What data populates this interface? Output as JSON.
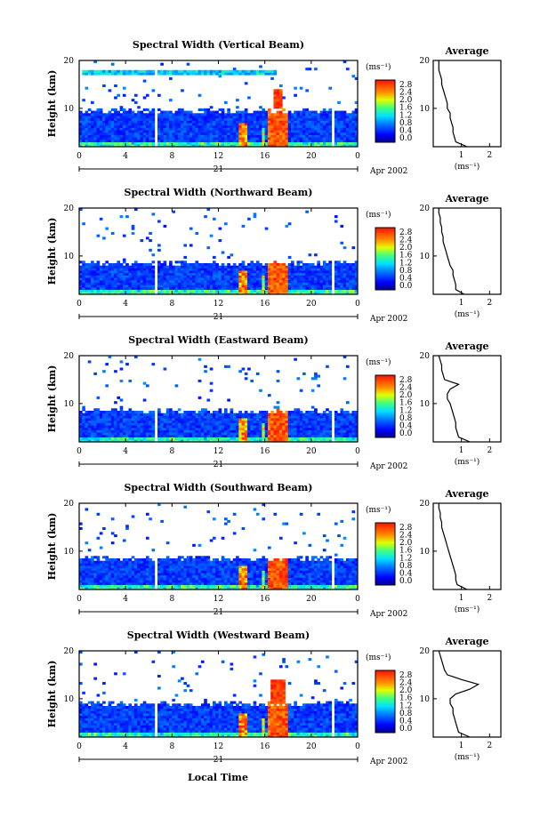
{
  "figure": {
    "date_day": "21",
    "date_label": "Apr 2002",
    "xlabel": "Local Time",
    "ylabel": "Height (km)",
    "colorbar_unit": "(ms⁻¹)",
    "colorbar_ticks": [
      "2.8",
      "2.4",
      "2.0",
      "1.6",
      "1.2",
      "0.8",
      "0.4",
      "0.0"
    ],
    "avg_title": "Average",
    "avg_xlabel": "(ms⁻¹)"
  },
  "chart_data": [
    {
      "type": "heatmap",
      "title": "Spectral Width (Vertical Beam)",
      "x": "Local Time",
      "x_ticks": [
        "0",
        "4",
        "8",
        "12",
        "16",
        "20",
        "0"
      ],
      "xlim": [
        0,
        24
      ],
      "ylabel": "Height (km)",
      "y_ticks": [
        "20",
        "10"
      ],
      "ylim": [
        2,
        20
      ],
      "color_range": [
        0,
        2.8
      ],
      "avg": {
        "title": "Average",
        "x_ticks": [
          "1",
          "2"
        ],
        "xlim": [
          0,
          2.4
        ],
        "xlabel": "(ms⁻¹)",
        "heights": [
          2,
          3,
          4,
          5,
          6,
          7,
          8,
          9,
          10,
          11,
          12,
          13,
          14,
          15,
          16,
          17,
          18,
          19,
          20
        ],
        "values": [
          1.2,
          0.8,
          0.75,
          0.7,
          0.7,
          0.65,
          0.6,
          0.6,
          0.5,
          0.5,
          0.45,
          0.4,
          0.35,
          0.3,
          0.3,
          0.25,
          0.2,
          0.2,
          0.2
        ]
      }
    },
    {
      "type": "heatmap",
      "title": "Spectral Width (Northward Beam)",
      "x": "Local Time",
      "x_ticks": [
        "0",
        "4",
        "8",
        "12",
        "16",
        "20",
        "0"
      ],
      "xlim": [
        0,
        24
      ],
      "ylabel": "Height (km)",
      "y_ticks": [
        "20",
        "10"
      ],
      "ylim": [
        2,
        20
      ],
      "color_range": [
        0,
        2.8
      ],
      "avg": {
        "title": "Average",
        "x_ticks": [
          "1",
          "2"
        ],
        "xlim": [
          0,
          2.4
        ],
        "xlabel": "(ms⁻¹)",
        "heights": [
          2,
          3,
          4,
          5,
          6,
          7,
          8,
          9,
          10,
          11,
          12,
          13,
          14,
          15,
          16,
          17,
          18,
          19,
          20
        ],
        "values": [
          1.1,
          0.8,
          0.8,
          0.75,
          0.7,
          0.7,
          0.6,
          0.55,
          0.5,
          0.45,
          0.4,
          0.35,
          0.35,
          0.3,
          0.3,
          0.25,
          0.25,
          0.2,
          0.2
        ]
      }
    },
    {
      "type": "heatmap",
      "title": "Spectral Width (Eastward Beam)",
      "x": "Local Time",
      "x_ticks": [
        "0",
        "4",
        "8",
        "12",
        "16",
        "20",
        "0"
      ],
      "xlim": [
        0,
        24
      ],
      "ylabel": "Height (km)",
      "y_ticks": [
        "20",
        "10"
      ],
      "ylim": [
        2,
        20
      ],
      "color_range": [
        0,
        2.8
      ],
      "avg": {
        "title": "Average",
        "x_ticks": [
          "1",
          "2"
        ],
        "xlim": [
          0,
          2.4
        ],
        "xlabel": "(ms⁻¹)",
        "heights": [
          2,
          3,
          4,
          5,
          6,
          7,
          8,
          9,
          10,
          11,
          12,
          13,
          14,
          15,
          16,
          17,
          18,
          19,
          20
        ],
        "values": [
          1.3,
          0.9,
          0.85,
          0.8,
          0.8,
          0.75,
          0.7,
          0.65,
          0.6,
          0.5,
          0.5,
          0.6,
          0.9,
          0.4,
          0.35,
          0.3,
          0.3,
          0.25,
          0.2
        ]
      }
    },
    {
      "type": "heatmap",
      "title": "Spectral Width (Southward Beam)",
      "x": "Local Time",
      "x_ticks": [
        "0",
        "4",
        "8",
        "12",
        "16",
        "20",
        "0"
      ],
      "xlim": [
        0,
        24
      ],
      "ylabel": "Height (km)",
      "y_ticks": [
        "20",
        "10"
      ],
      "ylim": [
        2,
        20
      ],
      "color_range": [
        0,
        2.8
      ],
      "avg": {
        "title": "Average",
        "x_ticks": [
          "1",
          "2"
        ],
        "xlim": [
          0,
          2.4
        ],
        "xlabel": "(ms⁻¹)",
        "heights": [
          2,
          3,
          4,
          5,
          6,
          7,
          8,
          9,
          10,
          11,
          12,
          13,
          14,
          15,
          16,
          17,
          18,
          19,
          20
        ],
        "values": [
          1.2,
          0.85,
          0.8,
          0.8,
          0.75,
          0.7,
          0.65,
          0.6,
          0.55,
          0.5,
          0.45,
          0.4,
          0.35,
          0.3,
          0.3,
          0.25,
          0.25,
          0.2,
          0.2
        ]
      }
    },
    {
      "type": "heatmap",
      "title": "Spectral Width (Westward Beam)",
      "x": "Local Time",
      "x_ticks": [
        "0",
        "4",
        "8",
        "12",
        "16",
        "20",
        "0"
      ],
      "xlim": [
        0,
        24
      ],
      "ylabel": "Height (km)",
      "y_ticks": [
        "20",
        "10"
      ],
      "ylim": [
        2,
        20
      ],
      "color_range": [
        0,
        2.8
      ],
      "avg": {
        "title": "Average",
        "x_ticks": [
          "1",
          "2"
        ],
        "xlim": [
          0,
          2.4
        ],
        "xlabel": "(ms⁻¹)",
        "heights": [
          2,
          3,
          4,
          5,
          6,
          7,
          8,
          9,
          10,
          11,
          12,
          13,
          14,
          15,
          16,
          17,
          18,
          19,
          20
        ],
        "values": [
          1.3,
          0.9,
          0.85,
          0.8,
          0.75,
          0.7,
          0.7,
          0.6,
          0.6,
          0.8,
          1.3,
          1.6,
          1.0,
          0.5,
          0.4,
          0.35,
          0.3,
          0.25,
          0.2
        ]
      }
    }
  ]
}
